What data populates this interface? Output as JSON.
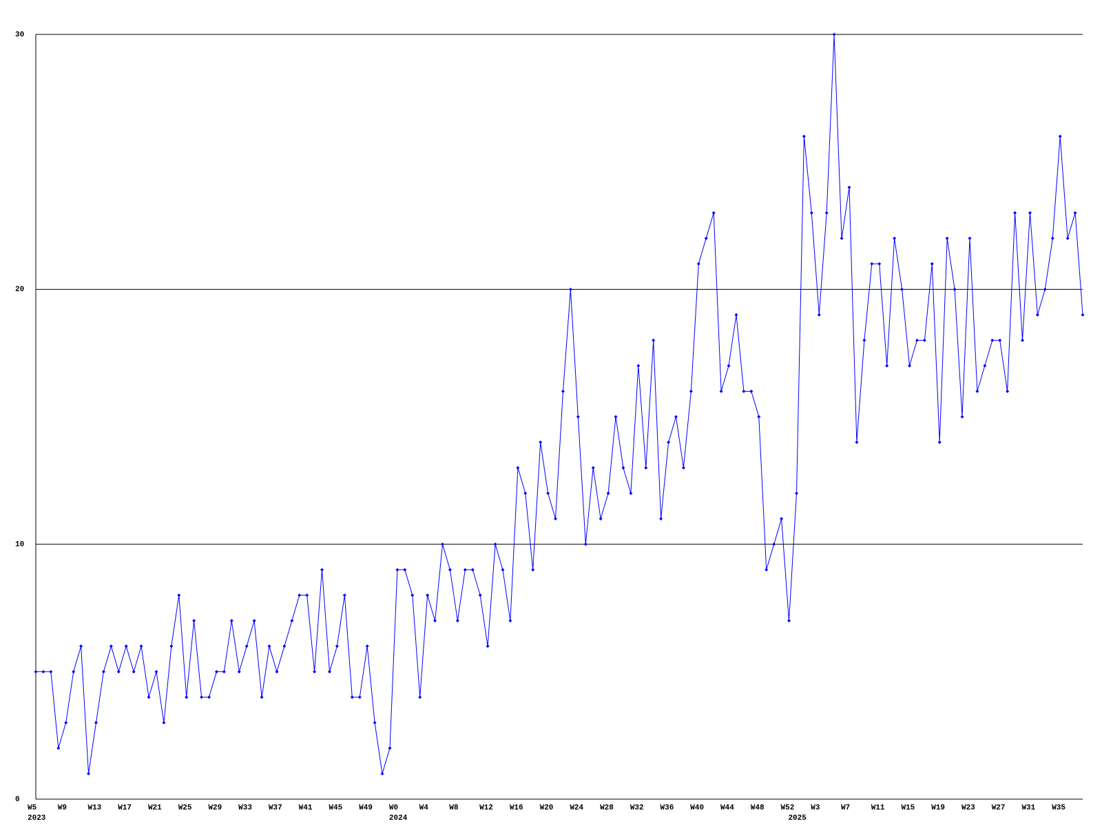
{
  "chart_data": {
    "type": "line",
    "color": "#0000ff",
    "grid": true,
    "ylim": [
      0,
      30
    ],
    "yticks": [
      0,
      10,
      20,
      30
    ],
    "categories": [
      "W5",
      null,
      null,
      null,
      "W9",
      null,
      null,
      null,
      "W13",
      null,
      null,
      null,
      "W17",
      null,
      null,
      null,
      "W21",
      null,
      null,
      null,
      "W25",
      null,
      null,
      null,
      "W29",
      null,
      null,
      null,
      "W33",
      null,
      null,
      null,
      "W37",
      null,
      null,
      null,
      "W41",
      null,
      null,
      null,
      "W45",
      null,
      null,
      null,
      "W49",
      null,
      null,
      null,
      "W0",
      null,
      null,
      null,
      "W4",
      null,
      null,
      null,
      "W8",
      null,
      null,
      null,
      "W12",
      null,
      null,
      null,
      "W16",
      null,
      null,
      null,
      "W20",
      null,
      null,
      null,
      "W24",
      null,
      null,
      null,
      "W28",
      null,
      null,
      null,
      "W32",
      null,
      null,
      null,
      "W36",
      null,
      null,
      null,
      "W40",
      null,
      null,
      null,
      "W44",
      null,
      null,
      null,
      "W48",
      null,
      null,
      null,
      "W52",
      null,
      null,
      null,
      "W3",
      null,
      null,
      null,
      "W7",
      null,
      null,
      null,
      "W11",
      null,
      null,
      null,
      "W15",
      null,
      null,
      null,
      "W19",
      null,
      null,
      null,
      "W23",
      null,
      null,
      null,
      "W27",
      null,
      null,
      null,
      "W31",
      null,
      null,
      null,
      "W35",
      null,
      null,
      null
    ],
    "years": [
      "2023",
      null,
      null,
      null,
      null,
      null,
      null,
      null,
      null,
      null,
      null,
      null,
      null,
      null,
      null,
      null,
      null,
      null,
      null,
      null,
      null,
      null,
      null,
      null,
      null,
      null,
      null,
      null,
      null,
      null,
      null,
      null,
      null,
      null,
      null,
      null,
      null,
      null,
      null,
      null,
      null,
      null,
      null,
      null,
      null,
      null,
      null,
      null,
      "2024",
      null,
      null,
      null,
      null,
      null,
      null,
      null,
      null,
      null,
      null,
      null,
      null,
      null,
      null,
      null,
      null,
      null,
      null,
      null,
      null,
      null,
      null,
      null,
      null,
      null,
      null,
      null,
      null,
      null,
      null,
      null,
      null,
      null,
      null,
      null,
      null,
      null,
      null,
      null,
      null,
      null,
      null,
      null,
      null,
      null,
      null,
      null,
      null,
      null,
      null,
      null,
      null,
      "2025",
      null,
      null,
      null,
      null,
      null,
      null,
      null,
      null,
      null,
      null,
      null,
      null,
      null,
      null,
      null,
      null,
      null,
      null,
      null,
      null,
      null,
      null,
      null,
      null,
      null,
      null,
      null,
      null,
      null,
      null,
      null,
      null,
      null,
      null,
      null,
      null,
      null,
      null
    ],
    "values": [
      5,
      5,
      5,
      2,
      3,
      5,
      6,
      1,
      3,
      5,
      6,
      5,
      6,
      5,
      6,
      4,
      5,
      3,
      6,
      8,
      4,
      7,
      4,
      4,
      5,
      5,
      7,
      5,
      6,
      7,
      4,
      6,
      5,
      6,
      7,
      8,
      8,
      5,
      9,
      5,
      6,
      8,
      4,
      4,
      6,
      3,
      1,
      2,
      9,
      9,
      8,
      4,
      8,
      7,
      10,
      9,
      7,
      9,
      9,
      8,
      6,
      10,
      9,
      7,
      13,
      12,
      9,
      14,
      12,
      11,
      16,
      20,
      15,
      10,
      13,
      11,
      12,
      15,
      13,
      12,
      17,
      13,
      18,
      11,
      14,
      15,
      13,
      16,
      21,
      22,
      23,
      16,
      17,
      19,
      16,
      16,
      15,
      9,
      10,
      11,
      7,
      12,
      26,
      23,
      19,
      23,
      30,
      22,
      24,
      14,
      18,
      21,
      21,
      17,
      22,
      20,
      17,
      18,
      18,
      21,
      14,
      22,
      20,
      15,
      22,
      16,
      17,
      18,
      18,
      16,
      23,
      18,
      23,
      19,
      20,
      22,
      26,
      22,
      23,
      19
    ]
  }
}
